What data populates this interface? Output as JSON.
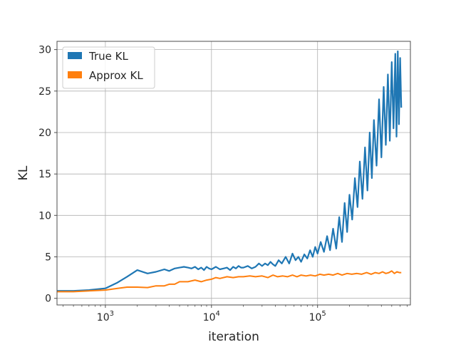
{
  "chart_data": {
    "type": "line",
    "xscale": "log",
    "xlim": [
      350,
      750000
    ],
    "ylim": [
      -0.8,
      31
    ],
    "xlabel": "iteration",
    "ylabel": "KL",
    "grid": true,
    "legend_position": "top-left",
    "yticks": [
      0,
      5,
      10,
      15,
      20,
      25,
      30
    ],
    "xticks": [
      {
        "value": 1000,
        "base": "10",
        "exp": "3"
      },
      {
        "value": 10000,
        "base": "10",
        "exp": "4"
      },
      {
        "value": 100000,
        "base": "10",
        "exp": "5"
      }
    ],
    "series": [
      {
        "name": "True KL",
        "color": "#1f77b4",
        "x": [
          350,
          500,
          700,
          1000,
          1300,
          1600,
          2000,
          2500,
          3000,
          3600,
          4000,
          4500,
          5000,
          5500,
          6000,
          6500,
          7000,
          7500,
          8000,
          8500,
          9000,
          9500,
          10000,
          11000,
          12000,
          13000,
          14000,
          15000,
          16000,
          17000,
          18000,
          19000,
          20000,
          22000,
          24000,
          26000,
          28000,
          30000,
          32000,
          34000,
          36000,
          38000,
          40000,
          43000,
          46000,
          50000,
          54000,
          58000,
          62000,
          66000,
          70000,
          75000,
          80000,
          85000,
          90000,
          95000,
          100000,
          107000,
          115000,
          123000,
          131000,
          140000,
          150000,
          160000,
          170000,
          180000,
          190000,
          200000,
          212000,
          225000,
          238000,
          250000,
          265000,
          280000,
          295000,
          310000,
          325000,
          340000,
          360000,
          380000,
          400000,
          420000,
          440000,
          460000,
          480000,
          500000,
          520000,
          540000,
          555000,
          570000,
          585000,
          600000,
          615000
        ],
        "y": [
          0.9,
          0.9,
          1.0,
          1.2,
          1.9,
          2.6,
          3.4,
          3.0,
          3.2,
          3.5,
          3.3,
          3.6,
          3.7,
          3.8,
          3.7,
          3.6,
          3.8,
          3.5,
          3.7,
          3.4,
          3.8,
          3.6,
          3.5,
          3.8,
          3.5,
          3.6,
          3.7,
          3.4,
          3.8,
          3.6,
          3.9,
          3.7,
          3.7,
          3.9,
          3.6,
          3.8,
          4.2,
          3.9,
          4.2,
          4.0,
          4.4,
          4.1,
          3.9,
          4.6,
          4.2,
          5.0,
          4.2,
          5.4,
          4.6,
          5.0,
          4.4,
          5.3,
          4.8,
          5.8,
          5.0,
          6.2,
          5.4,
          6.8,
          5.6,
          7.5,
          5.8,
          8.4,
          6.0,
          9.8,
          6.8,
          11.5,
          8.0,
          12.5,
          9.5,
          14.5,
          11.0,
          16.5,
          12.0,
          18.2,
          13.0,
          20.0,
          14.5,
          21.5,
          16.0,
          24.0,
          17.0,
          25.5,
          18.5,
          27.0,
          19.0,
          28.5,
          20.5,
          29.5,
          19.5,
          29.8,
          21.0,
          29.0,
          23.0
        ]
      },
      {
        "name": "Approx KL",
        "color": "#ff7f0e",
        "x": [
          350,
          500,
          700,
          1000,
          1300,
          1600,
          2000,
          2500,
          3000,
          3600,
          4000,
          4500,
          5000,
          6000,
          7000,
          8000,
          9000,
          10000,
          11000,
          12000,
          14000,
          16000,
          18000,
          20000,
          23000,
          26000,
          30000,
          34000,
          38000,
          42000,
          47000,
          52000,
          58000,
          64000,
          70000,
          78000,
          86000,
          95000,
          105000,
          115000,
          127000,
          140000,
          155000,
          170000,
          190000,
          210000,
          235000,
          260000,
          290000,
          320000,
          350000,
          380000,
          410000,
          440000,
          470000,
          500000,
          530000,
          560000,
          590000,
          615000
        ],
        "y": [
          0.8,
          0.8,
          0.9,
          1.0,
          1.2,
          1.35,
          1.35,
          1.3,
          1.5,
          1.5,
          1.7,
          1.7,
          2.0,
          2.0,
          2.2,
          2.0,
          2.2,
          2.3,
          2.5,
          2.4,
          2.6,
          2.5,
          2.6,
          2.6,
          2.7,
          2.6,
          2.7,
          2.5,
          2.8,
          2.6,
          2.7,
          2.6,
          2.8,
          2.6,
          2.8,
          2.7,
          2.8,
          2.7,
          2.9,
          2.8,
          2.9,
          2.8,
          3.0,
          2.8,
          3.0,
          2.9,
          3.0,
          2.9,
          3.1,
          2.9,
          3.1,
          3.0,
          3.2,
          3.0,
          3.1,
          3.3,
          3.0,
          3.2,
          3.1,
          3.1
        ]
      }
    ]
  }
}
